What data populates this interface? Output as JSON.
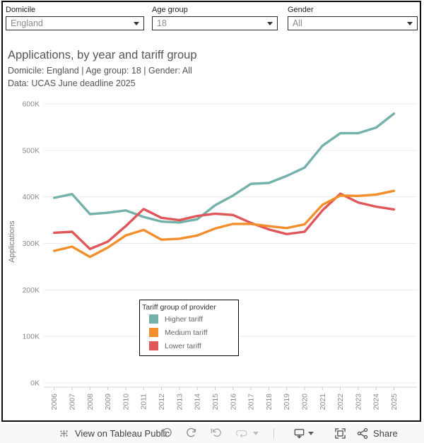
{
  "filters": {
    "domicile": {
      "label": "Domicile",
      "value": "England"
    },
    "age_group": {
      "label": "Age group",
      "value": "18"
    },
    "gender": {
      "label": "Gender",
      "value": "All"
    }
  },
  "header": {
    "title": "Applications, by year and tariff group",
    "subtitle": "Domicile: England | Age group: 18 | Gender: All",
    "data_source": "Data: UCAS June deadline 2025"
  },
  "chart_data": {
    "type": "line",
    "title": "Applications, by year and tariff group",
    "x": [
      2006,
      2007,
      2008,
      2009,
      2010,
      2011,
      2012,
      2013,
      2014,
      2015,
      2016,
      2017,
      2018,
      2019,
      2020,
      2021,
      2022,
      2023,
      2024,
      2025
    ],
    "series": [
      {
        "name": "Higher tariff",
        "color": "#74b1aa",
        "values": [
          398,
          406,
          363,
          366,
          371,
          357,
          347,
          345,
          352,
          382,
          403,
          428,
          430,
          445,
          463,
          510,
          537,
          537,
          549,
          579
        ]
      },
      {
        "name": "Medium tariff",
        "color": "#f28e2b",
        "values": [
          284,
          293,
          271,
          291,
          317,
          329,
          308,
          310,
          317,
          332,
          342,
          342,
          337,
          333,
          341,
          383,
          403,
          402,
          405,
          413
        ]
      },
      {
        "name": "Lower tariff",
        "color": "#e0575a",
        "values": [
          323,
          325,
          288,
          304,
          337,
          374,
          355,
          350,
          359,
          364,
          361,
          344,
          330,
          320,
          325,
          371,
          407,
          388,
          379,
          373
        ]
      }
    ],
    "value_unit": "thousands of applications (K)",
    "ylabel": "Applications",
    "xlabel": "",
    "ylim": [
      0,
      600
    ],
    "ytick_labels": [
      "0K",
      "100K",
      "200K",
      "300K",
      "400K",
      "500K",
      "600K"
    ],
    "grid": true,
    "legend": {
      "title": "Tariff group of provider",
      "position": "inside-bottom-center"
    }
  },
  "toolbar": {
    "view_label": "View on Tableau Public",
    "share_label": "Share"
  },
  "colors": {
    "higher_tariff": "#74b1aa",
    "medium_tariff": "#f28e2b",
    "lower_tariff": "#e0575a",
    "frame_border": "#0d0d0d",
    "grid_line": "#ebebeb",
    "tick_text": "#8b8b8b"
  }
}
